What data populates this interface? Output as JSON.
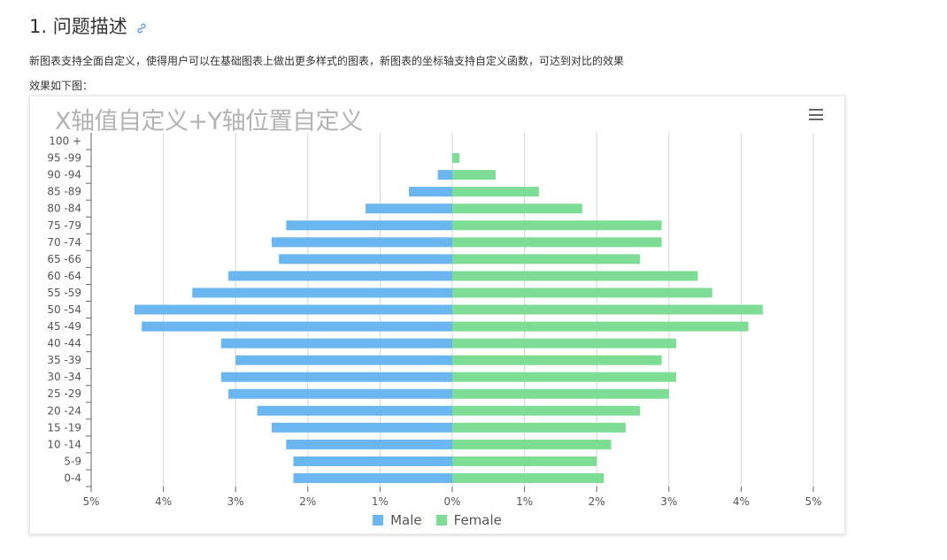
{
  "heading": "1. 问题描述",
  "description": "新图表支持全面自定义，使得用户可以在基础图表上做出更多样式的图表，新图表的坐标轴支持自定义函数，可达到对比的效果",
  "effect_label": "效果如下图：",
  "colors": {
    "male": "#6AB6F0",
    "female": "#7EDD94",
    "grid": "#d6d6d6",
    "axis": "#666666"
  },
  "chart_data": {
    "type": "bar",
    "orientation": "horizontal",
    "title": "X轴值自定义+Y轴位置自定义",
    "categories": [
      "100 +",
      "95 -99",
      "90 -94",
      "85 -89",
      "80 -84",
      "75 -79",
      "70 -74",
      "65 -66",
      "60 -64",
      "55 -59",
      "50 -54",
      "45 -49",
      "40 -44",
      "35 -39",
      "30 -34",
      "25 -29",
      "20 -24",
      "15 -19",
      "10 -14",
      "5-9",
      "0-4"
    ],
    "x_ticks": [
      "5%",
      "4%",
      "3%",
      "2%",
      "1%",
      "0%",
      "1%",
      "2%",
      "3%",
      "4%",
      "5%"
    ],
    "xlim": [
      -5,
      5
    ],
    "grid": true,
    "legend_position": "bottom-center",
    "series": [
      {
        "name": "Male",
        "values": [
          0,
          0,
          0.2,
          0.6,
          1.2,
          2.3,
          2.5,
          2.4,
          3.1,
          3.6,
          4.4,
          4.3,
          3.2,
          3.0,
          3.2,
          3.1,
          2.7,
          2.5,
          2.3,
          2.2,
          2.2
        ]
      },
      {
        "name": "Female",
        "values": [
          0,
          0.1,
          0.6,
          1.2,
          1.8,
          2.9,
          2.9,
          2.6,
          3.4,
          3.6,
          4.3,
          4.1,
          3.1,
          2.9,
          3.1,
          3.0,
          2.6,
          2.4,
          2.2,
          2.0,
          2.1
        ]
      }
    ]
  }
}
